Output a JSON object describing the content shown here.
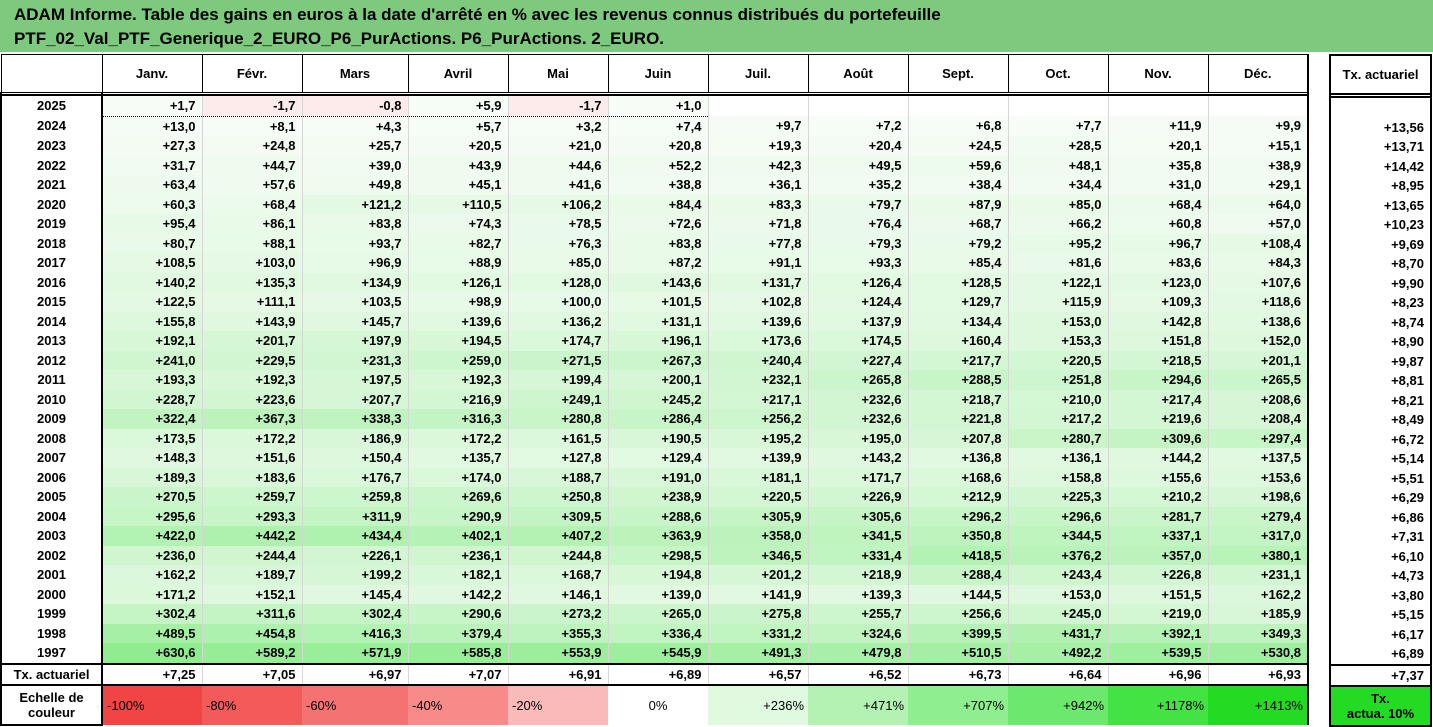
{
  "title": {
    "line1": "ADAM Informe. Table des gains en euros à la date d'arrêté en % avec les revenus connus distribués du portefeuille",
    "line2": "PTF_02_Val_PTF_Generique_2_EURO_P6_PurActions. P6_PurActions. 2_EURO."
  },
  "months": [
    "Janv.",
    "Févr.",
    "Mars",
    "Avril",
    "Mai",
    "Juin",
    "Juil.",
    "Août",
    "Sept.",
    "Oct.",
    "Nov.",
    "Déc."
  ],
  "side_header": "Tx. actuariel",
  "rows": [
    {
      "year": "2025",
      "values": [
        "+1,7",
        "-1,7",
        "-0,8",
        "+5,9",
        "-1,7",
        "+1,0",
        "",
        "",
        "",
        "",
        "",
        ""
      ],
      "tx": ""
    },
    {
      "year": "2024",
      "values": [
        "+13,0",
        "+8,1",
        "+4,3",
        "+5,7",
        "+3,2",
        "+7,4",
        "+9,7",
        "+7,2",
        "+6,8",
        "+7,7",
        "+11,9",
        "+9,9"
      ],
      "tx": "+13,56"
    },
    {
      "year": "2023",
      "values": [
        "+27,3",
        "+24,8",
        "+25,7",
        "+20,5",
        "+21,0",
        "+20,8",
        "+19,3",
        "+20,4",
        "+24,5",
        "+28,5",
        "+20,1",
        "+15,1"
      ],
      "tx": "+13,71"
    },
    {
      "year": "2022",
      "values": [
        "+31,7",
        "+44,7",
        "+39,0",
        "+43,9",
        "+44,6",
        "+52,2",
        "+42,3",
        "+49,5",
        "+59,6",
        "+48,1",
        "+35,8",
        "+38,9"
      ],
      "tx": "+14,42"
    },
    {
      "year": "2021",
      "values": [
        "+63,4",
        "+57,6",
        "+49,8",
        "+45,1",
        "+41,6",
        "+38,8",
        "+36,1",
        "+35,2",
        "+38,4",
        "+34,4",
        "+31,0",
        "+29,1"
      ],
      "tx": "+8,95"
    },
    {
      "year": "2020",
      "values": [
        "+60,3",
        "+68,4",
        "+121,2",
        "+110,5",
        "+106,2",
        "+84,4",
        "+83,3",
        "+79,7",
        "+87,9",
        "+85,0",
        "+68,4",
        "+64,0"
      ],
      "tx": "+13,65"
    },
    {
      "year": "2019",
      "values": [
        "+95,4",
        "+86,1",
        "+83,8",
        "+74,3",
        "+78,5",
        "+72,6",
        "+71,8",
        "+76,4",
        "+68,7",
        "+66,2",
        "+60,8",
        "+57,0"
      ],
      "tx": "+10,23"
    },
    {
      "year": "2018",
      "values": [
        "+80,7",
        "+88,1",
        "+93,7",
        "+82,7",
        "+76,3",
        "+83,8",
        "+77,8",
        "+79,3",
        "+79,2",
        "+95,2",
        "+96,7",
        "+108,4"
      ],
      "tx": "+9,69"
    },
    {
      "year": "2017",
      "values": [
        "+108,5",
        "+103,0",
        "+96,9",
        "+88,9",
        "+85,0",
        "+87,2",
        "+91,1",
        "+93,3",
        "+85,4",
        "+81,6",
        "+83,6",
        "+84,3"
      ],
      "tx": "+8,70"
    },
    {
      "year": "2016",
      "values": [
        "+140,2",
        "+135,3",
        "+134,9",
        "+126,1",
        "+128,0",
        "+143,6",
        "+131,7",
        "+126,4",
        "+128,5",
        "+122,1",
        "+123,0",
        "+107,6"
      ],
      "tx": "+9,90"
    },
    {
      "year": "2015",
      "values": [
        "+122,5",
        "+111,1",
        "+103,5",
        "+98,9",
        "+100,0",
        "+101,5",
        "+102,8",
        "+124,4",
        "+129,7",
        "+115,9",
        "+109,3",
        "+118,6"
      ],
      "tx": "+8,23"
    },
    {
      "year": "2014",
      "values": [
        "+155,8",
        "+143,9",
        "+145,7",
        "+139,6",
        "+136,2",
        "+131,1",
        "+139,6",
        "+137,9",
        "+134,4",
        "+153,0",
        "+142,8",
        "+138,6"
      ],
      "tx": "+8,74"
    },
    {
      "year": "2013",
      "values": [
        "+192,1",
        "+201,7",
        "+197,9",
        "+194,5",
        "+174,7",
        "+196,1",
        "+173,6",
        "+174,5",
        "+160,4",
        "+153,3",
        "+151,8",
        "+152,0"
      ],
      "tx": "+8,90"
    },
    {
      "year": "2012",
      "values": [
        "+241,0",
        "+229,5",
        "+231,3",
        "+259,0",
        "+271,5",
        "+267,3",
        "+240,4",
        "+227,4",
        "+217,7",
        "+220,5",
        "+218,5",
        "+201,1"
      ],
      "tx": "+9,87"
    },
    {
      "year": "2011",
      "values": [
        "+193,3",
        "+192,3",
        "+197,5",
        "+192,3",
        "+199,4",
        "+200,1",
        "+232,1",
        "+265,8",
        "+288,5",
        "+251,8",
        "+294,6",
        "+265,5"
      ],
      "tx": "+8,81"
    },
    {
      "year": "2010",
      "values": [
        "+228,7",
        "+223,6",
        "+207,7",
        "+216,9",
        "+249,1",
        "+245,2",
        "+217,1",
        "+232,6",
        "+218,7",
        "+210,0",
        "+217,4",
        "+208,6"
      ],
      "tx": "+8,21"
    },
    {
      "year": "2009",
      "values": [
        "+322,4",
        "+367,3",
        "+338,3",
        "+316,3",
        "+280,8",
        "+286,4",
        "+256,2",
        "+232,6",
        "+221,8",
        "+217,2",
        "+219,6",
        "+208,4"
      ],
      "tx": "+8,49"
    },
    {
      "year": "2008",
      "values": [
        "+173,5",
        "+172,2",
        "+186,9",
        "+172,2",
        "+161,5",
        "+190,5",
        "+195,2",
        "+195,0",
        "+207,8",
        "+280,7",
        "+309,6",
        "+297,4"
      ],
      "tx": "+6,72"
    },
    {
      "year": "2007",
      "values": [
        "+148,3",
        "+151,6",
        "+150,4",
        "+135,7",
        "+127,8",
        "+129,4",
        "+139,9",
        "+143,2",
        "+136,8",
        "+136,1",
        "+144,2",
        "+137,5"
      ],
      "tx": "+5,14"
    },
    {
      "year": "2006",
      "values": [
        "+189,3",
        "+183,6",
        "+176,7",
        "+174,0",
        "+188,7",
        "+191,0",
        "+181,1",
        "+171,7",
        "+168,6",
        "+158,8",
        "+155,6",
        "+153,6"
      ],
      "tx": "+5,51"
    },
    {
      "year": "2005",
      "values": [
        "+270,5",
        "+259,7",
        "+259,8",
        "+269,6",
        "+250,8",
        "+238,9",
        "+220,5",
        "+226,9",
        "+212,9",
        "+225,3",
        "+210,2",
        "+198,6"
      ],
      "tx": "+6,29"
    },
    {
      "year": "2004",
      "values": [
        "+295,6",
        "+293,3",
        "+311,9",
        "+290,9",
        "+309,5",
        "+288,6",
        "+305,9",
        "+305,6",
        "+296,2",
        "+296,6",
        "+281,7",
        "+279,4"
      ],
      "tx": "+6,86"
    },
    {
      "year": "2003",
      "values": [
        "+422,0",
        "+442,2",
        "+434,4",
        "+402,1",
        "+407,2",
        "+363,9",
        "+358,0",
        "+341,5",
        "+350,8",
        "+344,5",
        "+337,1",
        "+317,0"
      ],
      "tx": "+7,31"
    },
    {
      "year": "2002",
      "values": [
        "+236,0",
        "+244,4",
        "+226,1",
        "+236,1",
        "+244,8",
        "+298,5",
        "+346,5",
        "+331,4",
        "+418,5",
        "+376,2",
        "+357,0",
        "+380,1"
      ],
      "tx": "+6,10"
    },
    {
      "year": "2001",
      "values": [
        "+162,2",
        "+189,7",
        "+199,2",
        "+182,1",
        "+168,7",
        "+194,8",
        "+201,2",
        "+218,9",
        "+288,4",
        "+243,4",
        "+226,8",
        "+231,1"
      ],
      "tx": "+4,73"
    },
    {
      "year": "2000",
      "values": [
        "+171,2",
        "+152,1",
        "+145,4",
        "+142,2",
        "+146,1",
        "+139,0",
        "+141,9",
        "+139,3",
        "+144,5",
        "+153,0",
        "+151,5",
        "+162,2"
      ],
      "tx": "+3,80"
    },
    {
      "year": "1999",
      "values": [
        "+302,4",
        "+311,6",
        "+302,4",
        "+290,6",
        "+273,2",
        "+265,0",
        "+275,8",
        "+255,7",
        "+256,6",
        "+245,0",
        "+219,0",
        "+185,9"
      ],
      "tx": "+5,15"
    },
    {
      "year": "1998",
      "values": [
        "+489,5",
        "+454,8",
        "+416,3",
        "+379,4",
        "+355,3",
        "+336,4",
        "+331,2",
        "+324,6",
        "+399,5",
        "+431,7",
        "+392,1",
        "+349,3"
      ],
      "tx": "+6,17"
    },
    {
      "year": "1997",
      "values": [
        "+630,6",
        "+589,2",
        "+571,9",
        "+585,8",
        "+553,9",
        "+545,9",
        "+491,3",
        "+479,8",
        "+510,5",
        "+492,2",
        "+539,5",
        "+530,8"
      ],
      "tx": "+6,89"
    }
  ],
  "tx_row": {
    "label": "Tx. actuariel",
    "values": [
      "+7,25",
      "+7,05",
      "+6,97",
      "+7,07",
      "+6,91",
      "+6,89",
      "+6,57",
      "+6,52",
      "+6,73",
      "+6,64",
      "+6,96",
      "+6,93"
    ],
    "total": "+7,37"
  },
  "scale": {
    "label_line1": "Echelle de",
    "label_line2": "couleur",
    "items": [
      {
        "label": "-100%",
        "color": "#f14444"
      },
      {
        "label": "-80%",
        "color": "#f35a5a"
      },
      {
        "label": "-60%",
        "color": "#f57272"
      },
      {
        "label": "-40%",
        "color": "#f88a8a"
      },
      {
        "label": "-20%",
        "color": "#fbbaba"
      },
      {
        "label": "0%",
        "color": "#ffffff"
      },
      {
        "label": "+236%",
        "color": "#dffadf"
      },
      {
        "label": "+471%",
        "color": "#b4f2b4"
      },
      {
        "label": "+707%",
        "color": "#8eef8e"
      },
      {
        "label": "+942%",
        "color": "#6ce96c"
      },
      {
        "label": "+1178%",
        "color": "#44e344"
      },
      {
        "label": "+1413%",
        "color": "#22db22"
      }
    ],
    "side_line1": "Tx.",
    "side_line2": "actua. 10%",
    "side_color": "#22db22"
  }
}
